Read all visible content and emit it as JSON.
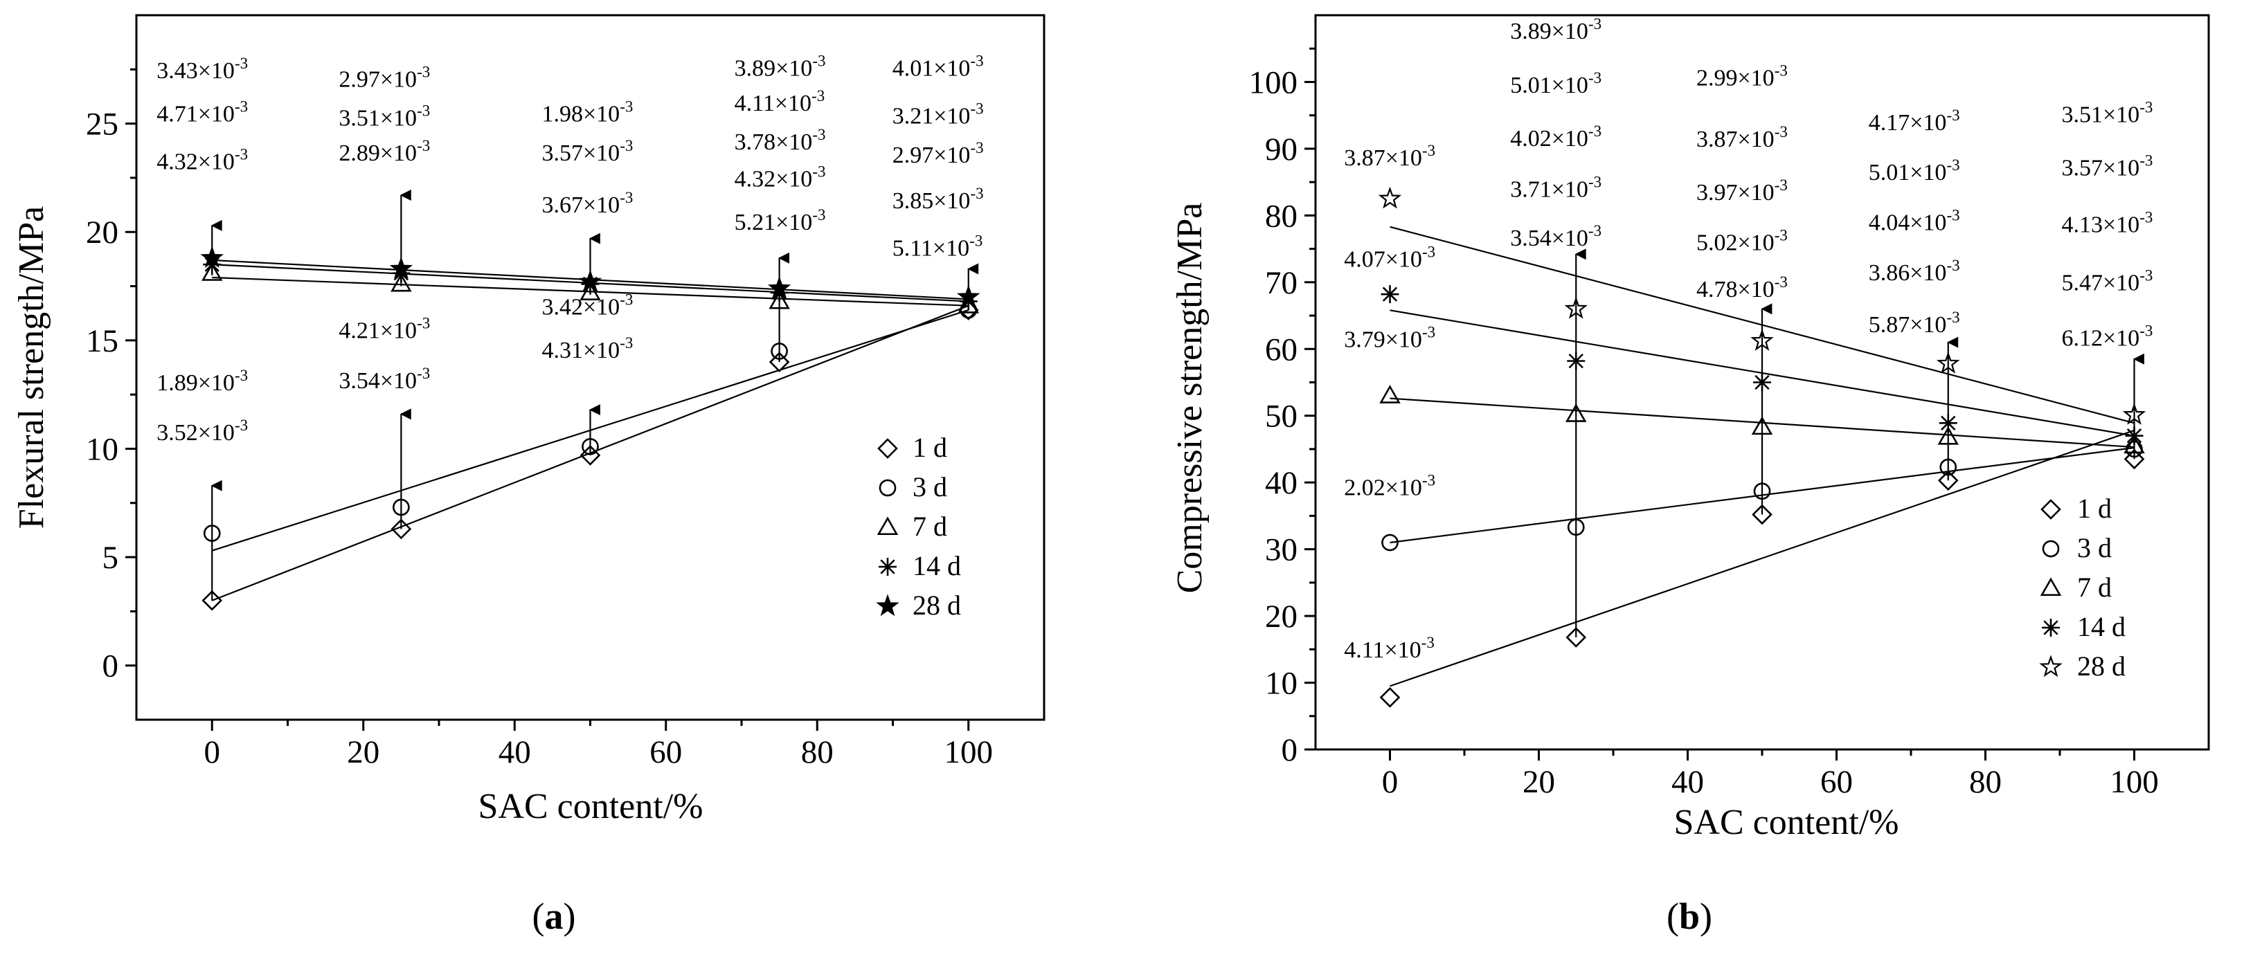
{
  "chart_data": [
    {
      "id": "a",
      "type": "scatter",
      "panel_label": "a",
      "title": "",
      "xlabel": "SAC content/%",
      "ylabel": "Flexural strength/MPa",
      "xlim": [
        -10,
        110
      ],
      "ylim": [
        -2.5,
        30
      ],
      "xticks": [
        0,
        20,
        40,
        60,
        80,
        100
      ],
      "yticks": [
        0,
        5,
        10,
        15,
        20,
        25
      ],
      "x": [
        0,
        25,
        50,
        75,
        100
      ],
      "series": [
        {
          "name": "1 d",
          "marker": "diamond",
          "values": [
            3.0,
            6.3,
            9.7,
            14.0,
            16.4
          ],
          "fit": [
            3.0,
            16.6
          ]
        },
        {
          "name": "3 d",
          "marker": "circle",
          "values": [
            6.1,
            7.3,
            10.1,
            14.5,
            16.4
          ],
          "fit": [
            5.3,
            16.4
          ]
        },
        {
          "name": "7 d",
          "marker": "triangle",
          "values": [
            18.1,
            17.6,
            17.2,
            16.8,
            16.6
          ],
          "fit": [
            17.9,
            16.6
          ]
        },
        {
          "name": "14 d",
          "marker": "asterisk",
          "values": [
            18.5,
            18.1,
            17.6,
            17.2,
            16.8
          ],
          "fit": [
            18.5,
            16.8
          ]
        },
        {
          "name": "28 d",
          "marker": "filled-star",
          "values": [
            18.8,
            18.3,
            17.7,
            17.4,
            17.0
          ],
          "fit": [
            18.7,
            16.9
          ]
        }
      ],
      "arrows": [
        {
          "x": 0,
          "from": 3.0,
          "to": 8.3
        },
        {
          "x": 0,
          "from": 18.0,
          "to": 20.3
        },
        {
          "x": 25,
          "from": 6.3,
          "to": 11.6
        },
        {
          "x": 25,
          "from": 17.5,
          "to": 21.7
        },
        {
          "x": 50,
          "from": 9.7,
          "to": 11.8
        },
        {
          "x": 50,
          "from": 17.1,
          "to": 19.7
        },
        {
          "x": 75,
          "from": 14.0,
          "to": 18.8
        },
        {
          "x": 100,
          "from": 16.4,
          "to": 18.3
        }
      ],
      "annotations": [
        {
          "base": "3.43×10",
          "exp": "-3",
          "x": 0,
          "y": 27.1
        },
        {
          "base": "4.71×10",
          "exp": "-3",
          "x": 0,
          "y": 25.1
        },
        {
          "base": "4.32×10",
          "exp": "-3",
          "x": 0,
          "y": 22.9
        },
        {
          "base": "1.89×10",
          "exp": "-3",
          "x": 0,
          "y": 12.7
        },
        {
          "base": "3.52×10",
          "exp": "-3",
          "x": 0,
          "y": 10.4
        },
        {
          "base": "2.97×10",
          "exp": "-3",
          "x": 25,
          "y": 26.7
        },
        {
          "base": "3.51×10",
          "exp": "-3",
          "x": 25,
          "y": 24.9
        },
        {
          "base": "2.89×10",
          "exp": "-3",
          "x": 25,
          "y": 23.3
        },
        {
          "base": "4.21×10",
          "exp": "-3",
          "x": 25,
          "y": 15.1
        },
        {
          "base": "3.54×10",
          "exp": "-3",
          "x": 25,
          "y": 12.8
        },
        {
          "base": "1.98×10",
          "exp": "-3",
          "x": 50,
          "y": 25.1
        },
        {
          "base": "3.57×10",
          "exp": "-3",
          "x": 50,
          "y": 23.3
        },
        {
          "base": "3.67×10",
          "exp": "-3",
          "x": 50,
          "y": 20.9
        },
        {
          "base": "3.42×10",
          "exp": "-3",
          "x": 50,
          "y": 16.2
        },
        {
          "base": "4.31×10",
          "exp": "-3",
          "x": 50,
          "y": 14.2
        },
        {
          "base": "3.89×10",
          "exp": "-3",
          "x": 75,
          "y": 27.2
        },
        {
          "base": "4.11×10",
          "exp": "-3",
          "x": 75,
          "y": 25.6
        },
        {
          "base": "3.78×10",
          "exp": "-3",
          "x": 75,
          "y": 23.8
        },
        {
          "base": "4.32×10",
          "exp": "-3",
          "x": 75,
          "y": 22.1
        },
        {
          "base": "5.21×10",
          "exp": "-3",
          "x": 75,
          "y": 20.1
        },
        {
          "base": "4.01×10",
          "exp": "-3",
          "x": 100,
          "y": 27.2
        },
        {
          "base": "3.21×10",
          "exp": "-3",
          "x": 100,
          "y": 25.0
        },
        {
          "base": "2.97×10",
          "exp": "-3",
          "x": 100,
          "y": 23.2
        },
        {
          "base": "3.85×10",
          "exp": "-3",
          "x": 100,
          "y": 21.1
        },
        {
          "base": "5.11×10",
          "exp": "-3",
          "x": 100,
          "y": 18.9
        }
      ],
      "legend_position": "right"
    },
    {
      "id": "b",
      "type": "scatter",
      "panel_label": "b",
      "title": "",
      "xlabel": "SAC content/%",
      "ylabel": "Compressive strength/MPa",
      "xlim": [
        -10,
        110
      ],
      "ylim": [
        0,
        110
      ],
      "xticks": [
        0,
        20,
        40,
        60,
        80,
        100
      ],
      "yticks": [
        0,
        10,
        20,
        30,
        40,
        50,
        60,
        70,
        80,
        90,
        100
      ],
      "x": [
        0,
        25,
        50,
        75,
        100
      ],
      "series": [
        {
          "name": "1 d",
          "marker": "diamond",
          "values": [
            7.8,
            16.8,
            35.2,
            40.3,
            43.5
          ],
          "fit": [
            9.5,
            47.8
          ]
        },
        {
          "name": "3 d",
          "marker": "circle",
          "values": [
            31.0,
            33.3,
            38.7,
            42.3,
            45.0
          ],
          "fit": [
            31.0,
            45.2
          ]
        },
        {
          "name": "7 d",
          "marker": "triangle",
          "values": [
            53.0,
            50.2,
            48.3,
            46.8,
            45.5
          ],
          "fit": [
            52.6,
            45.3
          ]
        },
        {
          "name": "14 d",
          "marker": "asterisk",
          "values": [
            68.2,
            58.2,
            55.0,
            48.9,
            47.0
          ],
          "fit": [
            65.8,
            47.0
          ]
        },
        {
          "name": "28 d",
          "marker": "star",
          "values": [
            82.5,
            66.0,
            61.2,
            57.8,
            50.1
          ],
          "fit": [
            78.3,
            48.9
          ]
        }
      ],
      "arrows": [
        {
          "x": 25,
          "from": 16.8,
          "to": 74.2
        },
        {
          "x": 50,
          "from": 35.2,
          "to": 66.0
        },
        {
          "x": 75,
          "from": 40.3,
          "to": 61.0
        },
        {
          "x": 100,
          "from": 43.5,
          "to": 58.5
        }
      ],
      "annotations": [
        {
          "base": "3.87×10",
          "exp": "-3",
          "x": 5,
          "y": 87.5
        },
        {
          "base": "4.07×10",
          "exp": "-3",
          "x": 5,
          "y": 72.3
        },
        {
          "base": "3.79×10",
          "exp": "-3",
          "x": 5,
          "y": 60.3
        },
        {
          "base": "2.02×10",
          "exp": "-3",
          "x": 5,
          "y": 38.1
        },
        {
          "base": "4.11×10",
          "exp": "-3",
          "x": 5,
          "y": 13.8
        },
        {
          "base": "3.89×10",
          "exp": "-3",
          "x": 25,
          "y": 106.5
        },
        {
          "base": "5.01×10",
          "exp": "-3",
          "x": 25,
          "y": 98.4
        },
        {
          "base": "4.02×10",
          "exp": "-3",
          "x": 25,
          "y": 90.4
        },
        {
          "base": "3.71×10",
          "exp": "-3",
          "x": 25,
          "y": 82.8
        },
        {
          "base": "3.54×10",
          "exp": "-3",
          "x": 25,
          "y": 75.5
        },
        {
          "base": "2.99×10",
          "exp": "-3",
          "x": 50,
          "y": 99.5
        },
        {
          "base": "3.87×10",
          "exp": "-3",
          "x": 50,
          "y": 90.3
        },
        {
          "base": "3.97×10",
          "exp": "-3",
          "x": 50,
          "y": 82.3
        },
        {
          "base": "5.02×10",
          "exp": "-3",
          "x": 50,
          "y": 74.8
        },
        {
          "base": "4.78×10",
          "exp": "-3",
          "x": 50,
          "y": 67.8
        },
        {
          "base": "4.17×10",
          "exp": "-3",
          "x": 75,
          "y": 92.8
        },
        {
          "base": "5.01×10",
          "exp": "-3",
          "x": 75,
          "y": 85.3
        },
        {
          "base": "4.04×10",
          "exp": "-3",
          "x": 75,
          "y": 77.8
        },
        {
          "base": "3.86×10",
          "exp": "-3",
          "x": 75,
          "y": 70.3
        },
        {
          "base": "5.87×10",
          "exp": "-3",
          "x": 75,
          "y": 62.5
        },
        {
          "base": "3.51×10",
          "exp": "-3",
          "x": 100,
          "y": 94.0
        },
        {
          "base": "3.57×10",
          "exp": "-3",
          "x": 100,
          "y": 86.0
        },
        {
          "base": "4.13×10",
          "exp": "-3",
          "x": 100,
          "y": 77.5
        },
        {
          "base": "5.47×10",
          "exp": "-3",
          "x": 100,
          "y": 68.8
        },
        {
          "base": "6.12×10",
          "exp": "-3",
          "x": 100,
          "y": 60.5
        }
      ],
      "legend_position": "bottom-right"
    }
  ]
}
